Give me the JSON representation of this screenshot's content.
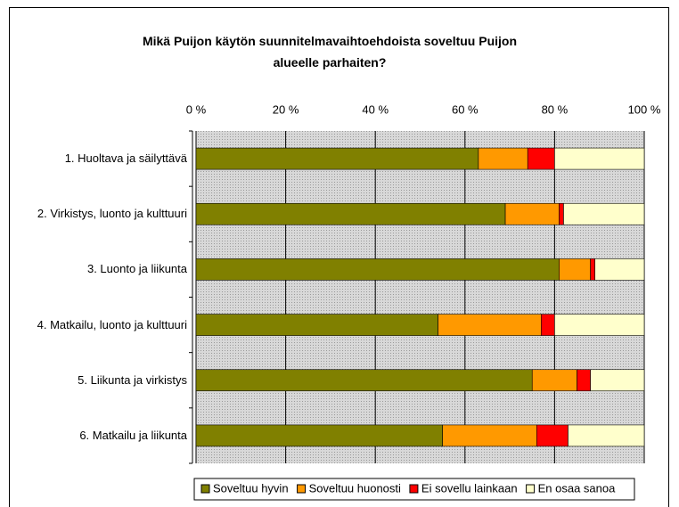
{
  "chart_data": {
    "type": "stacked_bar_horizontal",
    "title": "Mikä Puijon käytön suunnitelmavaihtoehdoista soveltuu Puijon alueelle parhaiten?",
    "categories": [
      "1. Huoltava ja säilyttävä",
      "2. Virkistys, luonto ja kulttuuri",
      "3. Luonto ja liikunta",
      "4. Matkailu, luonto ja kulttuuri",
      "5. Liikunta ja virkistys",
      "6. Matkailu ja liikunta"
    ],
    "series": [
      {
        "name": "Soveltuu hyvin",
        "color": "#808000",
        "values": [
          63,
          69,
          81,
          54,
          75,
          55
        ]
      },
      {
        "name": "Soveltuu huonosti",
        "color": "#ff9900",
        "values": [
          11,
          12,
          7,
          23,
          10,
          21
        ]
      },
      {
        "name": "Ei sovellu lainkaan",
        "color": "#ff0000",
        "values": [
          6,
          1,
          1,
          3,
          3,
          7
        ]
      },
      {
        "name": "En osaa sanoa",
        "color": "#ffffcc",
        "values": [
          20,
          18,
          11,
          20,
          12,
          17
        ]
      }
    ],
    "xlim": [
      0,
      100
    ],
    "xticks": [
      {
        "value": 0,
        "label": "0 %"
      },
      {
        "value": 20,
        "label": "20 %"
      },
      {
        "value": 40,
        "label": "40 %"
      },
      {
        "value": 60,
        "label": "60 %"
      },
      {
        "value": 80,
        "label": "80 %"
      },
      {
        "value": 100,
        "label": "100 %"
      }
    ],
    "grid": true,
    "legend": "bottom"
  }
}
